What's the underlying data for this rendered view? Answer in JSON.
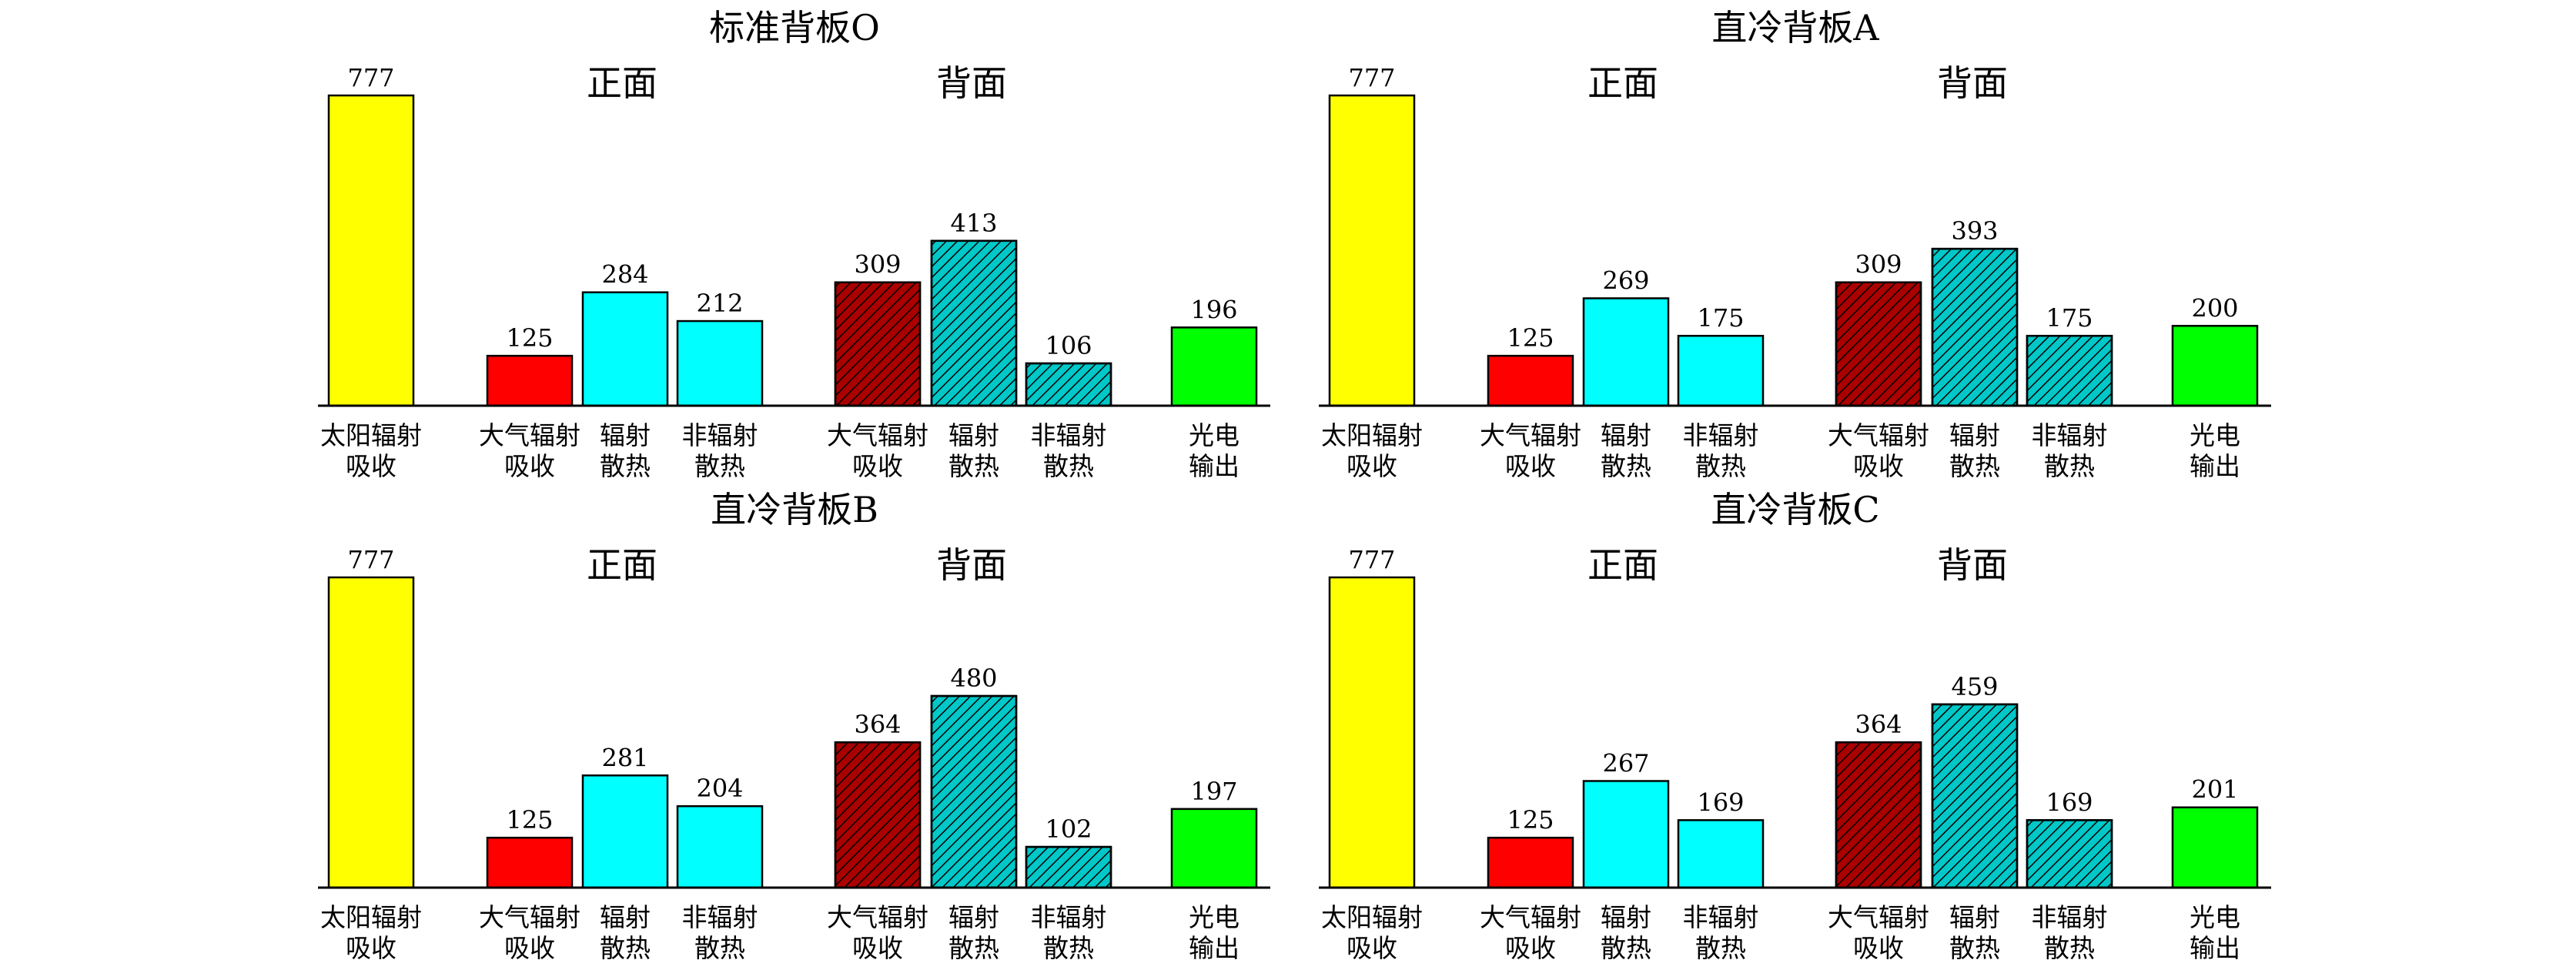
{
  "chart_data": [
    {
      "type": "bar",
      "title": "标准背板O",
      "section_labels": {
        "front": "正面",
        "back": "背面"
      },
      "categories": [
        [
          "太阳辐射",
          "吸收"
        ],
        [
          "大气辐射",
          "吸收"
        ],
        [
          "辐射",
          "散热"
        ],
        [
          "非辐射",
          "散热"
        ],
        [
          "大气辐射",
          "吸收"
        ],
        [
          "辐射",
          "散热"
        ],
        [
          "非辐射",
          "散热"
        ],
        [
          "光电",
          "输出"
        ]
      ],
      "values": [
        777,
        125,
        284,
        212,
        309,
        413,
        106,
        196
      ],
      "ylim": [
        0,
        800
      ]
    },
    {
      "type": "bar",
      "title": "直冷背板A",
      "section_labels": {
        "front": "正面",
        "back": "背面"
      },
      "categories": [
        [
          "太阳辐射",
          "吸收"
        ],
        [
          "大气辐射",
          "吸收"
        ],
        [
          "辐射",
          "散热"
        ],
        [
          "非辐射",
          "散热"
        ],
        [
          "大气辐射",
          "吸收"
        ],
        [
          "辐射",
          "散热"
        ],
        [
          "非辐射",
          "散热"
        ],
        [
          "光电",
          "输出"
        ]
      ],
      "values": [
        777,
        125,
        269,
        175,
        309,
        393,
        175,
        200
      ],
      "ylim": [
        0,
        800
      ]
    },
    {
      "type": "bar",
      "title": "直冷背板B",
      "section_labels": {
        "front": "正面",
        "back": "背面"
      },
      "categories": [
        [
          "太阳辐射",
          "吸收"
        ],
        [
          "大气辐射",
          "吸收"
        ],
        [
          "辐射",
          "散热"
        ],
        [
          "非辐射",
          "散热"
        ],
        [
          "大气辐射",
          "吸收"
        ],
        [
          "辐射",
          "散热"
        ],
        [
          "非辐射",
          "散热"
        ],
        [
          "光电",
          "输出"
        ]
      ],
      "values": [
        777,
        125,
        281,
        204,
        364,
        480,
        102,
        197
      ],
      "ylim": [
        0,
        800
      ]
    },
    {
      "type": "bar",
      "title": "直冷背板C",
      "section_labels": {
        "front": "正面",
        "back": "背面"
      },
      "categories": [
        [
          "太阳辐射",
          "吸收"
        ],
        [
          "大气辐射",
          "吸收"
        ],
        [
          "辐射",
          "散热"
        ],
        [
          "非辐射",
          "散热"
        ],
        [
          "大气辐射",
          "吸收"
        ],
        [
          "辐射",
          "散热"
        ],
        [
          "非辐射",
          "散热"
        ],
        [
          "光电",
          "输出"
        ]
      ],
      "values": [
        777,
        125,
        267,
        169,
        364,
        459,
        169,
        201
      ],
      "ylim": [
        0,
        800
      ]
    }
  ],
  "style": {
    "bar_fills": [
      "#ffff00",
      "#ff0000",
      "#00ffff",
      "#00ffff",
      "#aa0000",
      "#00c8c8",
      "#00c8c8",
      "#00ff00"
    ],
    "bar_hatched": [
      false,
      false,
      false,
      false,
      true,
      true,
      true,
      false
    ],
    "grid": false,
    "legend": "none"
  }
}
